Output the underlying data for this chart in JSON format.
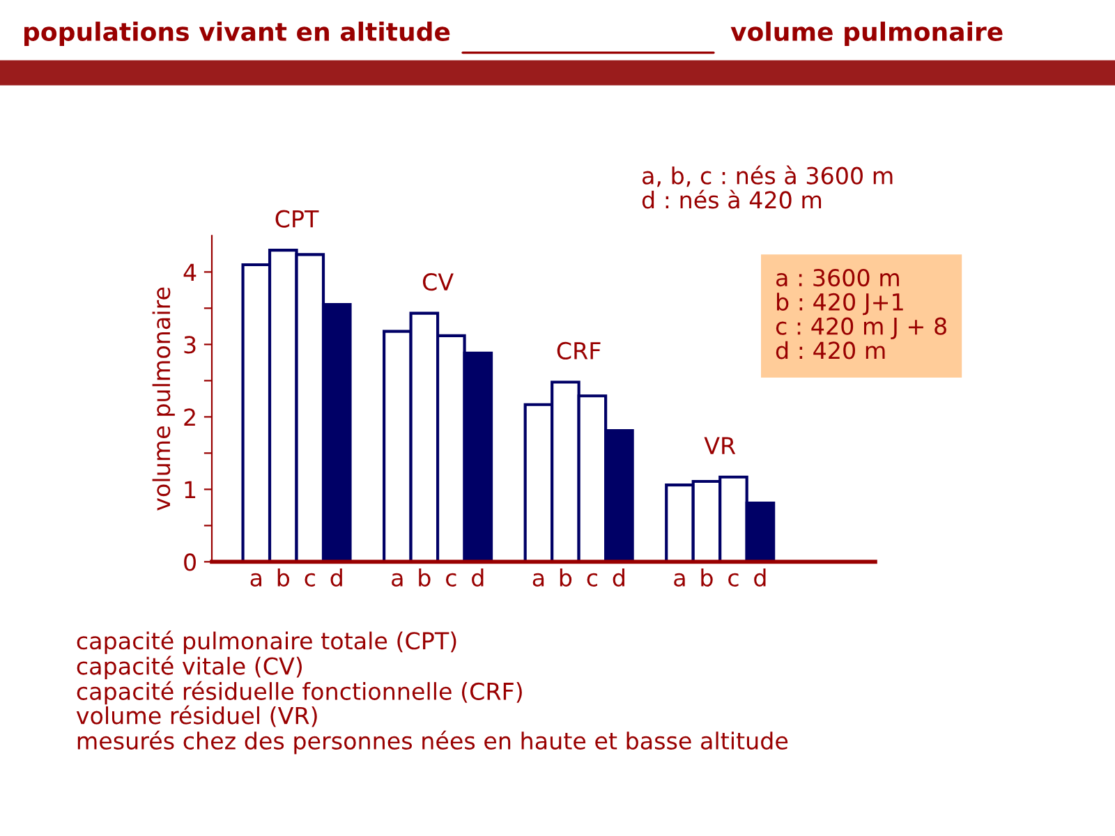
{
  "chart_data": {
    "type": "bar",
    "title": "populations vivant en altitude",
    "subtitle": "volume pulmonaire",
    "ylabel": "volume pulmonaire",
    "categories": [
      "CPT",
      "CV",
      "CRF",
      "VR"
    ],
    "series": [
      {
        "name": "a",
        "color": "#ffffff",
        "values": [
          4.1,
          3.18,
          2.17,
          1.06
        ]
      },
      {
        "name": "b",
        "color": "#ffffff",
        "values": [
          4.3,
          3.43,
          2.48,
          1.11
        ]
      },
      {
        "name": "c",
        "color": "#ffffff",
        "values": [
          4.24,
          3.12,
          2.29,
          1.17
        ]
      },
      {
        "name": "d",
        "color": "#000066",
        "values": [
          3.55,
          2.88,
          1.81,
          0.81
        ]
      }
    ],
    "ylim": [
      0,
      4.5
    ],
    "yticks": [
      0,
      {
        "value": 0.5,
        "label": null
      },
      1,
      {
        "value": 1.5,
        "label": null
      },
      2,
      {
        "value": 2.5,
        "label": null
      },
      3,
      {
        "value": 3.5,
        "label": null
      },
      4
    ],
    "grid": false,
    "legend": false,
    "annotations": [
      "a, b, c : nés à 3600 m\nd : nés à 420 m",
      "a : 3600 m\nb : 420 J+1\nc : 420 m J + 8\nd : 420 m",
      "capacité pulmonaire totale (CPT)\ncapacité vitale (CV)\ncapacité résiduelle fonctionnelle (CRF)\nvolume résiduel (VR)\nmesurés chez des personnes nées en haute et basse altitude"
    ]
  }
}
